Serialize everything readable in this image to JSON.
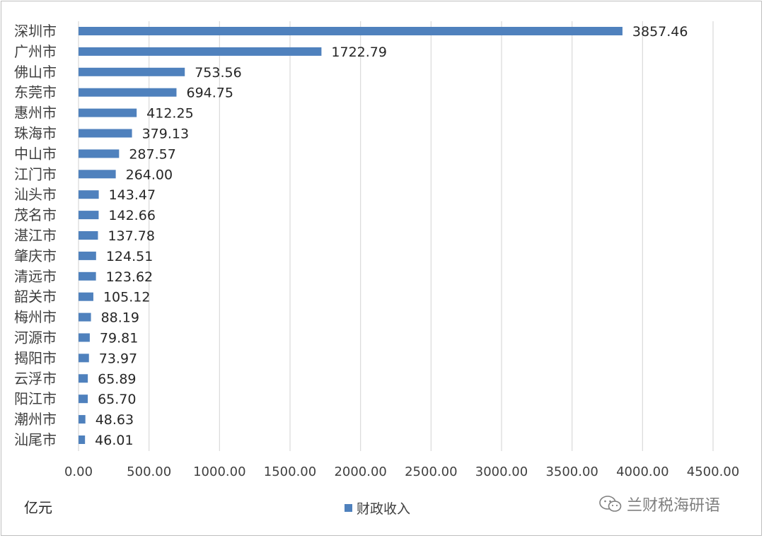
{
  "chart_data": {
    "type": "bar",
    "orientation": "horizontal",
    "categories": [
      "深圳市",
      "广州市",
      "佛山市",
      "东莞市",
      "惠州市",
      "珠海市",
      "中山市",
      "江门市",
      "汕头市",
      "茂名市",
      "湛江市",
      "肇庆市",
      "清远市",
      "韶关市",
      "梅州市",
      "河源市",
      "揭阳市",
      "云浮市",
      "阳江市",
      "潮州市",
      "汕尾市"
    ],
    "series": [
      {
        "name": "财政收入",
        "values": [
          3857.46,
          1722.79,
          753.56,
          694.75,
          412.25,
          379.13,
          287.57,
          264.0,
          143.47,
          142.66,
          137.78,
          124.51,
          123.62,
          105.12,
          88.19,
          79.81,
          73.97,
          65.89,
          65.7,
          48.63,
          46.01
        ],
        "value_labels": [
          "3857.46",
          "1722.79",
          "753.56",
          "694.75",
          "412.25",
          "379.13",
          "287.57",
          "264.00",
          "143.47",
          "142.66",
          "137.78",
          "124.51",
          "123.62",
          "105.12",
          "88.19",
          "79.81",
          "73.97",
          "65.89",
          "65.70",
          "48.63",
          "46.01"
        ]
      }
    ],
    "x_ticks": [
      "0.00",
      "500.00",
      "1000.00",
      "1500.00",
      "2000.00",
      "2500.00",
      "3000.00",
      "3500.00",
      "4000.00",
      "4500.00"
    ],
    "xlim": [
      0,
      4500
    ],
    "grid": "vertical",
    "legend": "bottom",
    "unit_label": "亿元",
    "bar_color": "#4f81bd"
  },
  "watermark": {
    "text": "兰财税海研语",
    "icon": "wechat-icon"
  }
}
